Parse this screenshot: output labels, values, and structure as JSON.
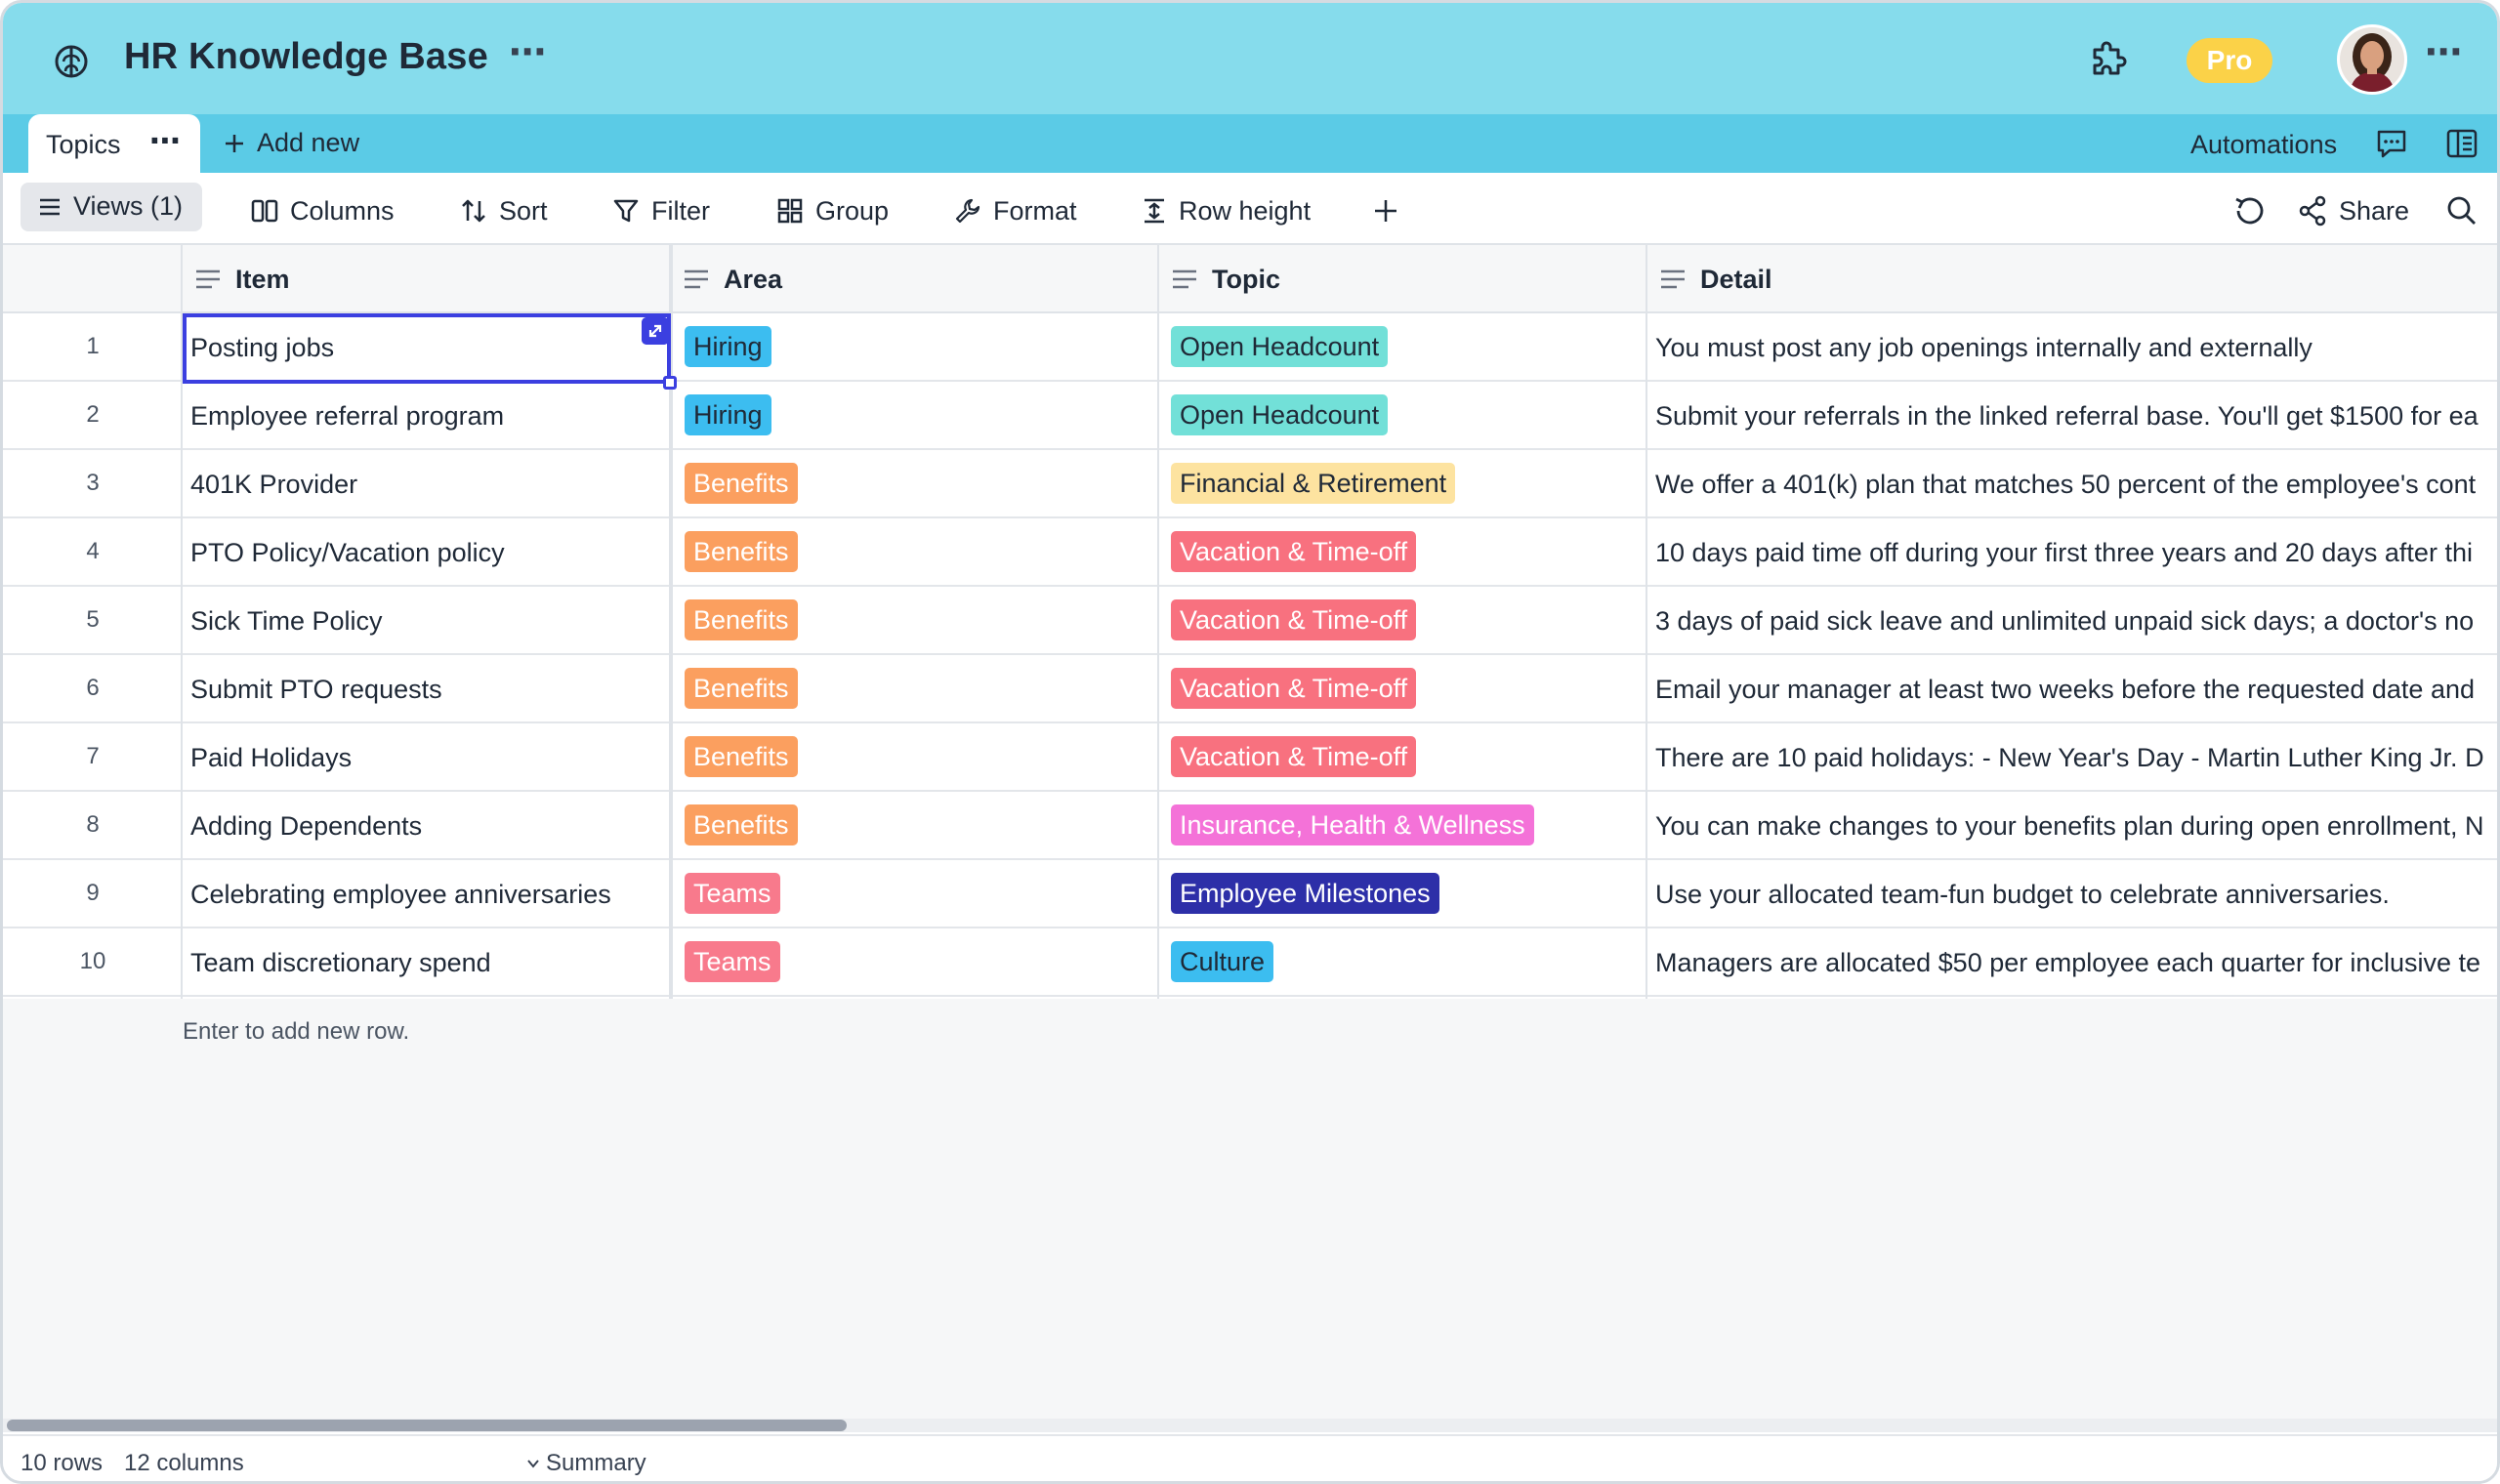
{
  "header": {
    "title": "HR Knowledge Base",
    "more": "⋯",
    "plan_badge": "Pro",
    "more_right": "⋯",
    "logo_icon": "brain-icon",
    "extension_icon": "puzzle-icon"
  },
  "tabs": {
    "active_label": "Topics",
    "more": "⋯",
    "add_new": "Add new",
    "automations": "Automations"
  },
  "toolbar": {
    "views": "Views (1)",
    "columns": "Columns",
    "sort": "Sort",
    "filter": "Filter",
    "group": "Group",
    "format": "Format",
    "row_height": "Row height",
    "share": "Share"
  },
  "columns": [
    "Item",
    "Area",
    "Topic",
    "Detail"
  ],
  "rows": [
    {
      "n": "1",
      "item": "Posting jobs",
      "area": "Hiring",
      "topic": "Open Headcount",
      "detail": "You must post any job openings internally and externally"
    },
    {
      "n": "2",
      "item": "Employee referral program",
      "area": "Hiring",
      "topic": "Open Headcount",
      "detail": "Submit your referrals in the linked referral base. You'll get $1500 for ea"
    },
    {
      "n": "3",
      "item": "401K Provider",
      "area": "Benefits",
      "topic": "Financial & Retirement",
      "detail": "We offer a 401(k) plan that matches 50 percent of the employee's cont"
    },
    {
      "n": "4",
      "item": "PTO Policy/Vacation policy",
      "area": "Benefits",
      "topic": "Vacation & Time-off",
      "detail": "10 days paid time off during your first three years and 20 days after thi"
    },
    {
      "n": "5",
      "item": "Sick Time Policy",
      "area": "Benefits",
      "topic": "Vacation & Time-off",
      "detail": "3 days of paid sick leave and unlimited unpaid sick days; a doctor's no"
    },
    {
      "n": "6",
      "item": "Submit PTO requests",
      "area": "Benefits",
      "topic": "Vacation & Time-off",
      "detail": "Email your manager at least two weeks before the requested date and"
    },
    {
      "n": "7",
      "item": "Paid Holidays",
      "area": "Benefits",
      "topic": "Vacation & Time-off",
      "detail": "There are 10 paid holidays: - New Year's Day - Martin Luther King Jr. D"
    },
    {
      "n": "8",
      "item": "Adding Dependents",
      "area": "Benefits",
      "topic": "Insurance, Health & Wellness",
      "detail": "You can make changes to your benefits plan during open enrollment, N"
    },
    {
      "n": "9",
      "item": "Celebrating employee anniversaries",
      "area": "Teams",
      "topic": "Employee Milestones",
      "detail": "Use your allocated team-fun budget to celebrate anniversaries."
    },
    {
      "n": "10",
      "item": "Team discretionary spend",
      "area": "Teams",
      "topic": "Culture",
      "detail": "Managers are allocated $50 per employee each quarter for inclusive te"
    }
  ],
  "tag_colors": {
    "Hiring": {
      "bg": "#3cbdf0",
      "fg": "#1f2937"
    },
    "Benefits": {
      "bg": "#fb9f5f",
      "fg": "#ffffff"
    },
    "Teams": {
      "bg": "#f87a8c",
      "fg": "#ffffff"
    },
    "Open Headcount": {
      "bg": "#72e0d8",
      "fg": "#1f2937"
    },
    "Financial & Retirement": {
      "bg": "#fde3a0",
      "fg": "#1f2937"
    },
    "Vacation & Time-off": {
      "bg": "#f8717f",
      "fg": "#ffffff"
    },
    "Insurance, Health & Wellness": {
      "bg": "#f472d8",
      "fg": "#ffffff"
    },
    "Employee Milestones": {
      "bg": "#2d2fa8",
      "fg": "#ffffff"
    },
    "Culture": {
      "bg": "#3cbdf0",
      "fg": "#1f2937"
    }
  },
  "grid": {
    "add_row_hint": "Enter to add new row."
  },
  "status": {
    "rows": "10 rows",
    "columns": "12 columns",
    "summary": "Summary"
  }
}
